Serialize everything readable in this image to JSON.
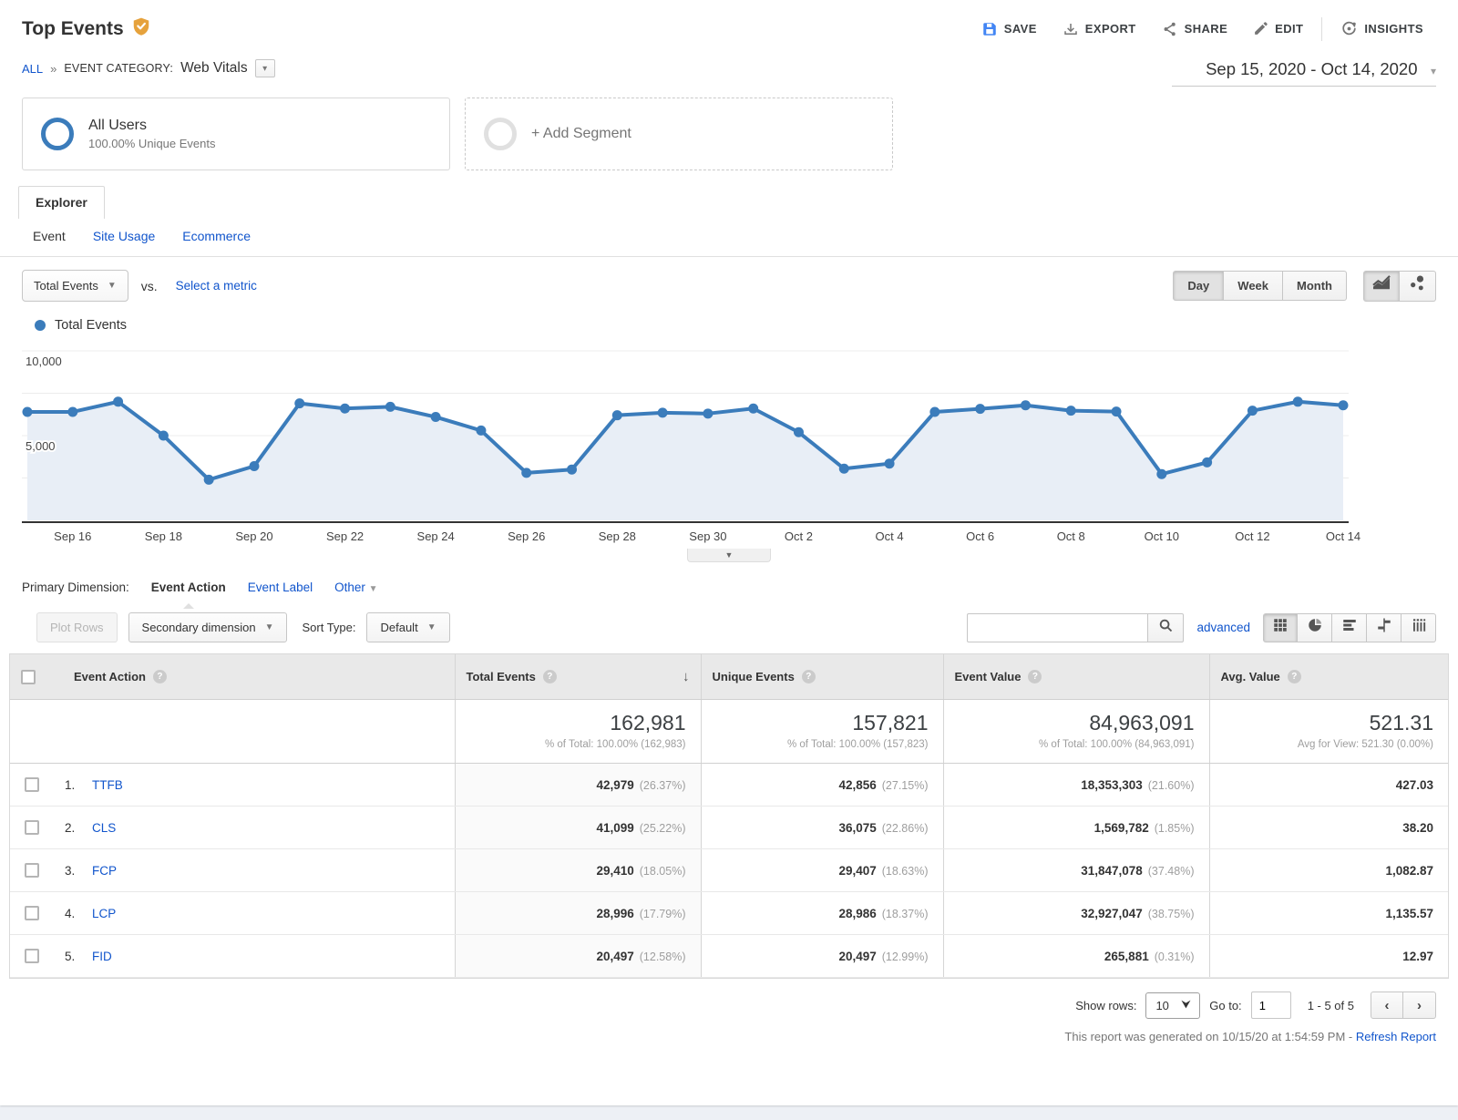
{
  "header": {
    "title": "Top Events",
    "actions": [
      {
        "label": "SAVE"
      },
      {
        "label": "EXPORT"
      },
      {
        "label": "SHARE"
      },
      {
        "label": "EDIT"
      },
      {
        "label": "INSIGHTS"
      }
    ]
  },
  "breadcrumb": {
    "all": "ALL",
    "separator": "»",
    "category_label": "EVENT CATEGORY:",
    "category_value": "Web Vitals"
  },
  "daterange": {
    "value": "Sep 15, 2020 - Oct 14, 2020"
  },
  "segments": {
    "all_users": {
      "title": "All Users",
      "subtitle": "100.00% Unique Events"
    },
    "add_label": "+ Add Segment"
  },
  "tabs": {
    "explorer": "Explorer",
    "subtabs": [
      {
        "label": "Event",
        "active": true
      },
      {
        "label": "Site Usage",
        "active": false
      },
      {
        "label": "Ecommerce",
        "active": false
      }
    ]
  },
  "metric_bar": {
    "metric_label": "Total Events",
    "vs_label": "vs.",
    "select_label": "Select a metric",
    "granularity": [
      "Day",
      "Week",
      "Month"
    ],
    "active_granularity": "Day"
  },
  "chart_data": {
    "type": "line",
    "title": "Total Events",
    "legend": "Total Events",
    "x": [
      "Sep 15",
      "Sep 16",
      "Sep 17",
      "Sep 18",
      "Sep 19",
      "Sep 20",
      "Sep 21",
      "Sep 22",
      "Sep 23",
      "Sep 24",
      "Sep 25",
      "Sep 26",
      "Sep 27",
      "Sep 28",
      "Sep 29",
      "Sep 30",
      "Oct 1",
      "Oct 2",
      "Oct 3",
      "Oct 4",
      "Oct 5",
      "Oct 6",
      "Oct 7",
      "Oct 8",
      "Oct 9",
      "Oct 10",
      "Oct 11",
      "Oct 12",
      "Oct 13",
      "Oct 14"
    ],
    "series": [
      {
        "name": "Total Events",
        "values": [
          6400,
          6400,
          7000,
          5000,
          2400,
          3200,
          6900,
          6600,
          6700,
          6100,
          5300,
          2800,
          3000,
          6200,
          6350,
          6300,
          6600,
          5200,
          3050,
          3350,
          6400,
          6580,
          6790,
          6470,
          6420,
          2730,
          3420,
          6470,
          7000,
          6790
        ]
      }
    ],
    "ylim": [
      0,
      10000
    ],
    "yticks": [
      {
        "v": 5000,
        "label": "5,000"
      },
      {
        "v": 10000,
        "label": "10,000"
      }
    ],
    "xtick_labels": [
      "Sep 16",
      "Sep 18",
      "Sep 20",
      "Sep 22",
      "Sep 24",
      "Sep 26",
      "Sep 28",
      "Sep 30",
      "Oct 2",
      "Oct 4",
      "Oct 6",
      "Oct 8",
      "Oct 10",
      "Oct 12",
      "Oct 14"
    ],
    "grid": true,
    "line_color": "#3b7cbb",
    "fill_color": "#e8eef6"
  },
  "dimension_bar": {
    "label": "Primary Dimension:",
    "active": "Event Action",
    "links": [
      "Event Label"
    ],
    "other_label": "Other"
  },
  "table_toolbar": {
    "plot_rows": "Plot Rows",
    "secondary": "Secondary dimension",
    "sort_type_label": "Sort Type:",
    "sort_type_value": "Default",
    "search_value": "",
    "advanced_label": "advanced"
  },
  "table": {
    "columns": [
      {
        "label": "Event Action",
        "sorted": false
      },
      {
        "label": "Total Events",
        "sorted": true,
        "summary": "162,981",
        "summary_sub": "% of Total: 100.00% (162,983)"
      },
      {
        "label": "Unique Events",
        "sorted": false,
        "summary": "157,821",
        "summary_sub": "% of Total: 100.00% (157,823)"
      },
      {
        "label": "Event Value",
        "sorted": false,
        "summary": "84,963,091",
        "summary_sub": "% of Total: 100.00% (84,963,091)"
      },
      {
        "label": "Avg. Value",
        "sorted": false,
        "summary": "521.31",
        "summary_sub": "Avg for View: 521.30 (0.00%)"
      }
    ],
    "rows": [
      {
        "rank": "1.",
        "name": "TTFB",
        "total": "42,979",
        "total_pct": "(26.37%)",
        "unique": "42,856",
        "unique_pct": "(27.15%)",
        "value": "18,353,303",
        "value_pct": "(21.60%)",
        "avg": "427.03"
      },
      {
        "rank": "2.",
        "name": "CLS",
        "total": "41,099",
        "total_pct": "(25.22%)",
        "unique": "36,075",
        "unique_pct": "(22.86%)",
        "value": "1,569,782",
        "value_pct": "(1.85%)",
        "avg": "38.20"
      },
      {
        "rank": "3.",
        "name": "FCP",
        "total": "29,410",
        "total_pct": "(18.05%)",
        "unique": "29,407",
        "unique_pct": "(18.63%)",
        "value": "31,847,078",
        "value_pct": "(37.48%)",
        "avg": "1,082.87"
      },
      {
        "rank": "4.",
        "name": "LCP",
        "total": "28,996",
        "total_pct": "(17.79%)",
        "unique": "28,986",
        "unique_pct": "(18.37%)",
        "value": "32,927,047",
        "value_pct": "(38.75%)",
        "avg": "1,135.57"
      },
      {
        "rank": "5.",
        "name": "FID",
        "total": "20,497",
        "total_pct": "(12.58%)",
        "unique": "20,497",
        "unique_pct": "(12.99%)",
        "value": "265,881",
        "value_pct": "(0.31%)",
        "avg": "12.97"
      }
    ]
  },
  "footer": {
    "show_rows_label": "Show rows:",
    "show_rows_value": "10",
    "goto_label": "Go to:",
    "goto_value": "1",
    "range_text": "1 - 5 of 5",
    "generated_text": "This report was generated on 10/15/20 at 1:54:59 PM - ",
    "refresh_label": "Refresh Report"
  }
}
